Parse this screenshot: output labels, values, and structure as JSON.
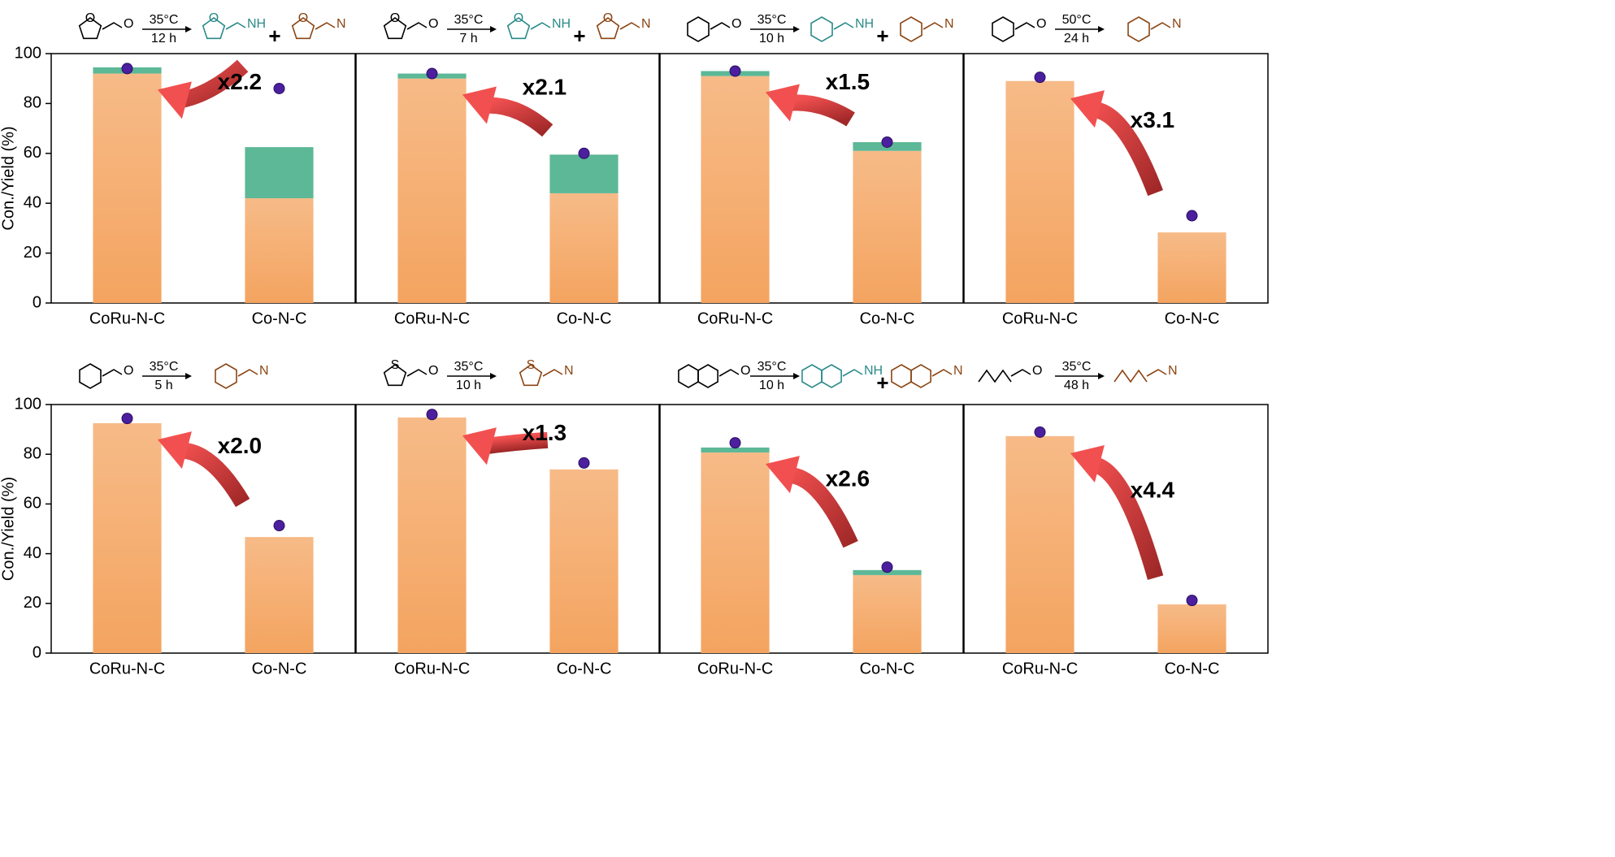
{
  "chart_data": [
    {
      "type": "bar",
      "categories": [
        "CoRu-N-C",
        "Co-N-C"
      ],
      "ylabel": "Con./Yield (%)",
      "ylim": [
        0,
        100
      ],
      "yticks": [
        0,
        20,
        40,
        60,
        80,
        100
      ],
      "series": [
        {
          "color": "#f4a460",
          "values": [
            92,
            42
          ]
        },
        {
          "color": "#5cb896",
          "values": [
            2.5,
            20.5
          ]
        },
        {
          "type": "scatter",
          "color": "#4b1f9e",
          "values": [
            94,
            86
          ]
        }
      ],
      "annotation": "x2.2",
      "scheme": {
        "reactant": [
          "O",
          "O"
        ],
        "conditions": [
          "35°C",
          "12 h"
        ],
        "products": [
          [
            "O",
            "NH"
          ],
          [
            "O",
            "N"
          ]
        ],
        "plus": "+"
      }
    },
    {
      "type": "bar",
      "categories": [
        "CoRu-N-C",
        "Co-N-C"
      ],
      "ylim": [
        0,
        100
      ],
      "series": [
        {
          "color": "#f4a460",
          "values": [
            90,
            44
          ]
        },
        {
          "color": "#5cb896",
          "values": [
            2,
            15.5
          ]
        },
        {
          "type": "scatter",
          "color": "#4b1f9e",
          "values": [
            92,
            60
          ]
        }
      ],
      "annotation": "x2.1",
      "scheme": {
        "reactant": [
          "O",
          "O"
        ],
        "conditions": [
          "35°C",
          "7 h"
        ],
        "products": [
          [
            "O",
            "NH"
          ],
          [
            "O",
            "N"
          ]
        ],
        "plus": "+"
      }
    },
    {
      "type": "bar",
      "categories": [
        "CoRu-N-C",
        "Co-N-C"
      ],
      "ylim": [
        0,
        100
      ],
      "series": [
        {
          "color": "#f4a460",
          "values": [
            91,
            61
          ]
        },
        {
          "color": "#5cb896",
          "values": [
            2,
            3.5
          ]
        },
        {
          "type": "scatter",
          "color": "#4b1f9e",
          "values": [
            93,
            64.5
          ]
        }
      ],
      "annotation": "x1.5",
      "scheme": {
        "reactant": [
          "O"
        ],
        "conditions": [
          "35°C",
          "10 h"
        ],
        "products": [
          [
            "NH"
          ],
          [
            "N"
          ]
        ],
        "plus": "+"
      }
    },
    {
      "type": "bar",
      "categories": [
        "CoRu-N-C",
        "Co-N-C"
      ],
      "ylim": [
        0,
        100
      ],
      "series": [
        {
          "color": "#f4a460",
          "values": [
            89,
            28.3
          ]
        },
        {
          "color": "#5cb896",
          "values": [
            0,
            0
          ]
        },
        {
          "type": "scatter",
          "color": "#4b1f9e",
          "values": [
            90.5,
            35
          ]
        }
      ],
      "annotation": "x3.1",
      "scheme": {
        "reactant": [
          "O"
        ],
        "conditions": [
          "50°C",
          "24 h"
        ],
        "products": [
          [
            "N"
          ]
        ]
      }
    },
    {
      "type": "bar",
      "categories": [
        "CoRu-N-C",
        "Co-N-C"
      ],
      "ylabel": "Con./Yield (%)",
      "ylim": [
        0,
        100
      ],
      "yticks": [
        0,
        20,
        40,
        60,
        80,
        100
      ],
      "series": [
        {
          "color": "#f4a460",
          "values": [
            92.5,
            46.7
          ]
        },
        {
          "color": "#5cb896",
          "values": [
            0,
            0
          ]
        },
        {
          "type": "scatter",
          "color": "#4b1f9e",
          "values": [
            94.4,
            51.3
          ]
        }
      ],
      "annotation": "x2.0",
      "scheme": {
        "reactant": [
          "O"
        ],
        "conditions": [
          "35°C",
          "5 h"
        ],
        "products": [
          [
            "N"
          ]
        ]
      }
    },
    {
      "type": "bar",
      "categories": [
        "CoRu-N-C",
        "Co-N-C"
      ],
      "ylim": [
        0,
        100
      ],
      "series": [
        {
          "color": "#f4a460",
          "values": [
            94.8,
            73.9
          ]
        },
        {
          "color": "#5cb896",
          "values": [
            0,
            0
          ]
        },
        {
          "type": "scatter",
          "color": "#4b1f9e",
          "values": [
            96,
            76.5
          ]
        }
      ],
      "annotation": "x1.3",
      "scheme": {
        "reactant": [
          "S",
          "O"
        ],
        "conditions": [
          "35°C",
          "10 h"
        ],
        "products": [
          [
            "S",
            "N"
          ]
        ]
      }
    },
    {
      "type": "bar",
      "categories": [
        "CoRu-N-C",
        "Co-N-C"
      ],
      "ylim": [
        0,
        100
      ],
      "series": [
        {
          "color": "#f4a460",
          "values": [
            80.7,
            31.4
          ]
        },
        {
          "color": "#5cb896",
          "values": [
            2,
            2
          ]
        },
        {
          "type": "scatter",
          "color": "#4b1f9e",
          "values": [
            84.6,
            34.6
          ]
        }
      ],
      "annotation": "x2.6",
      "scheme": {
        "reactant": [
          "O"
        ],
        "conditions": [
          "35°C",
          "10 h"
        ],
        "products": [
          [
            "NH"
          ],
          [
            "N"
          ]
        ],
        "plus": "+"
      }
    },
    {
      "type": "bar",
      "categories": [
        "CoRu-N-C",
        "Co-N-C"
      ],
      "ylim": [
        0,
        100
      ],
      "series": [
        {
          "color": "#f4a460",
          "values": [
            87.3,
            19.6
          ]
        },
        {
          "color": "#5cb896",
          "values": [
            0,
            0
          ]
        },
        {
          "type": "scatter",
          "color": "#4b1f9e",
          "values": [
            88.9,
            21.2
          ]
        }
      ],
      "annotation": "x4.4",
      "scheme": {
        "reactant": [
          "O"
        ],
        "conditions": [
          "35°C",
          "48 h"
        ],
        "products": [
          [
            "N"
          ]
        ]
      }
    }
  ]
}
